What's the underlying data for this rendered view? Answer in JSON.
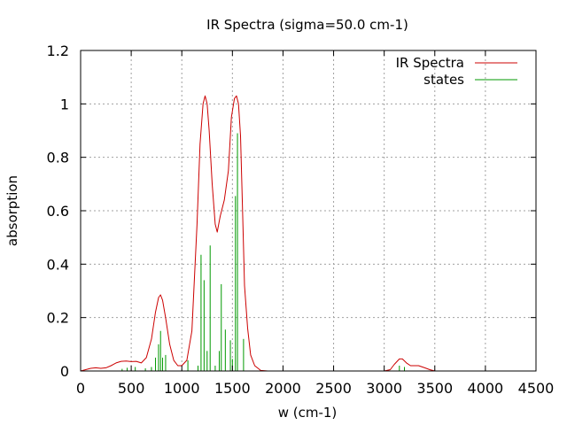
{
  "chart_data": {
    "type": "line",
    "title": "IR Spectra (sigma=50.0 cm-1)",
    "xlabel": "w (cm-1)",
    "ylabel": "absorption",
    "xlim": [
      0,
      4500
    ],
    "ylim": [
      0,
      1.2
    ],
    "x_ticks": [
      0,
      500,
      1000,
      1500,
      2000,
      2500,
      3000,
      3500,
      4000,
      4500
    ],
    "y_ticks": [
      0,
      0.2,
      0.4,
      0.6,
      0.8,
      1,
      1.2
    ],
    "x_tick_labels": [
      "0",
      "500",
      "1000",
      "1500",
      "2000",
      "2500",
      "3000",
      "3500",
      "4000",
      "4500"
    ],
    "y_tick_labels": [
      "0",
      "0.2",
      "0.4",
      "0.6",
      "0.8",
      "1",
      "1.2"
    ],
    "grid": true,
    "legend_position": "top-right",
    "series": [
      {
        "name": "IR Spectra",
        "style": "line",
        "color": "#cc0000",
        "points": [
          [
            0,
            0.0
          ],
          [
            50,
            0.005
          ],
          [
            100,
            0.01
          ],
          [
            150,
            0.012
          ],
          [
            200,
            0.01
          ],
          [
            250,
            0.012
          ],
          [
            300,
            0.02
          ],
          [
            350,
            0.03
          ],
          [
            400,
            0.036
          ],
          [
            450,
            0.037
          ],
          [
            500,
            0.035
          ],
          [
            550,
            0.036
          ],
          [
            600,
            0.03
          ],
          [
            650,
            0.05
          ],
          [
            700,
            0.12
          ],
          [
            740,
            0.22
          ],
          [
            770,
            0.275
          ],
          [
            790,
            0.285
          ],
          [
            810,
            0.265
          ],
          [
            840,
            0.2
          ],
          [
            880,
            0.1
          ],
          [
            920,
            0.04
          ],
          [
            960,
            0.02
          ],
          [
            1000,
            0.02
          ],
          [
            1050,
            0.04
          ],
          [
            1100,
            0.15
          ],
          [
            1150,
            0.55
          ],
          [
            1180,
            0.85
          ],
          [
            1210,
            1.0
          ],
          [
            1230,
            1.03
          ],
          [
            1250,
            1.0
          ],
          [
            1270,
            0.9
          ],
          [
            1300,
            0.7
          ],
          [
            1330,
            0.55
          ],
          [
            1350,
            0.52
          ],
          [
            1380,
            0.58
          ],
          [
            1420,
            0.64
          ],
          [
            1460,
            0.75
          ],
          [
            1490,
            0.95
          ],
          [
            1520,
            1.02
          ],
          [
            1540,
            1.03
          ],
          [
            1560,
            1.0
          ],
          [
            1580,
            0.88
          ],
          [
            1600,
            0.6
          ],
          [
            1620,
            0.32
          ],
          [
            1650,
            0.16
          ],
          [
            1680,
            0.06
          ],
          [
            1720,
            0.02
          ],
          [
            1780,
            0.002
          ],
          [
            1850,
            0.0
          ],
          [
            2500,
            0.0
          ],
          [
            3000,
            0.0
          ],
          [
            3060,
            0.005
          ],
          [
            3100,
            0.025
          ],
          [
            3150,
            0.045
          ],
          [
            3180,
            0.045
          ],
          [
            3220,
            0.03
          ],
          [
            3260,
            0.02
          ],
          [
            3300,
            0.02
          ],
          [
            3340,
            0.02
          ],
          [
            3400,
            0.012
          ],
          [
            3450,
            0.005
          ],
          [
            3500,
            0.0
          ],
          [
            4500,
            0.0
          ]
        ]
      },
      {
        "name": "states",
        "style": "impulse",
        "color": "#009900",
        "points": [
          [
            410,
            0.008
          ],
          [
            460,
            0.012
          ],
          [
            540,
            0.015
          ],
          [
            640,
            0.01
          ],
          [
            700,
            0.015
          ],
          [
            740,
            0.05
          ],
          [
            770,
            0.1
          ],
          [
            790,
            0.15
          ],
          [
            810,
            0.05
          ],
          [
            840,
            0.06
          ],
          [
            1060,
            0.04
          ],
          [
            1160,
            0.02
          ],
          [
            1190,
            0.435
          ],
          [
            1220,
            0.34
          ],
          [
            1250,
            0.075
          ],
          [
            1280,
            0.47
          ],
          [
            1330,
            0.02
          ],
          [
            1370,
            0.075
          ],
          [
            1390,
            0.325
          ],
          [
            1430,
            0.155
          ],
          [
            1480,
            0.115
          ],
          [
            1500,
            0.045
          ],
          [
            1530,
            0.655
          ],
          [
            1550,
            0.89
          ],
          [
            1610,
            0.12
          ],
          [
            3150,
            0.02
          ],
          [
            3200,
            0.015
          ]
        ]
      }
    ]
  }
}
